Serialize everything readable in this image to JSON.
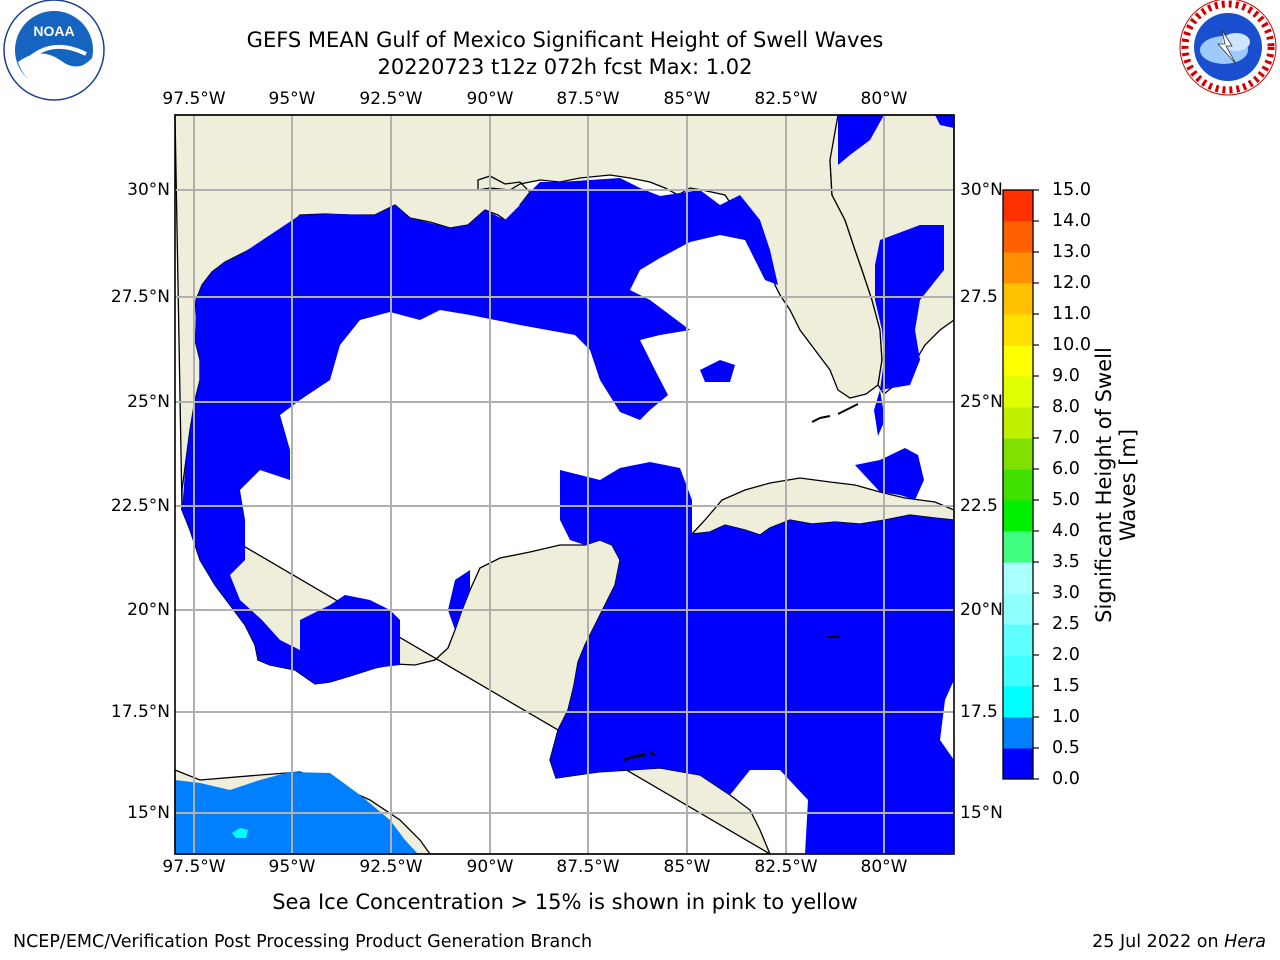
{
  "title_line1": "GEFS MEAN Gulf of Mexico Significant Height of Swell Waves",
  "title_line2": "20220723 t12z 072h fcst   Max: 1.02",
  "lon_labels": [
    "97.5°W",
    "95°W",
    "92.5°W",
    "90°W",
    "87.5°W",
    "85°W",
    "82.5°W",
    "80°W"
  ],
  "lat_labels": [
    "30°N",
    "27.5°N",
    "25°N",
    "22.5°N",
    "20°N",
    "17.5°N",
    "15°N"
  ],
  "lat_labels_right": [
    "30°N",
    "27.5",
    "25°N",
    "22.5",
    "20°N",
    "17.5",
    "15°N"
  ],
  "colorbar": {
    "label": "Significant Height of Swell Waves [m]",
    "ticks": [
      "0.0",
      "0.5",
      "1.0",
      "1.5",
      "2.0",
      "2.5",
      "3.0",
      "3.5",
      "4.0",
      "5.0",
      "6.0",
      "7.0",
      "8.0",
      "9.0",
      "10.0",
      "11.0",
      "12.0",
      "13.0",
      "14.0",
      "15.0"
    ],
    "tick_values": [
      0,
      0.5,
      1,
      1.5,
      2,
      2.5,
      3,
      3.5,
      4,
      5,
      6,
      7,
      8,
      9,
      10,
      11,
      12,
      13,
      14,
      15
    ],
    "colors": [
      "#0000ff",
      "#0080ff",
      "#00ffff",
      "#40ffff",
      "#60ffff",
      "#90ffff",
      "#aaffff",
      "#40ff80",
      "#00f000",
      "#40e000",
      "#80e000",
      "#c0f000",
      "#e0ff00",
      "#ffff00",
      "#ffe000",
      "#ffc000",
      "#ff9000",
      "#ff6000",
      "#ff3000",
      "#ff0000"
    ]
  },
  "note": "Sea Ice Concentration > 15% is shown in pink to yellow",
  "footer_left": "NCEP/EMC/Verification Post Processing Product Generation Branch",
  "footer_date": "25 Jul 2022 on ",
  "footer_host": "Hera",
  "logos": {
    "left": "noaa-logo",
    "right": "nws-logo"
  },
  "colors": {
    "land": "#efeedb",
    "swell_low": "#0000ff",
    "swell_mid": "#0080ff",
    "swell_high": "#00ffff",
    "grid": "#b0b0b0"
  }
}
